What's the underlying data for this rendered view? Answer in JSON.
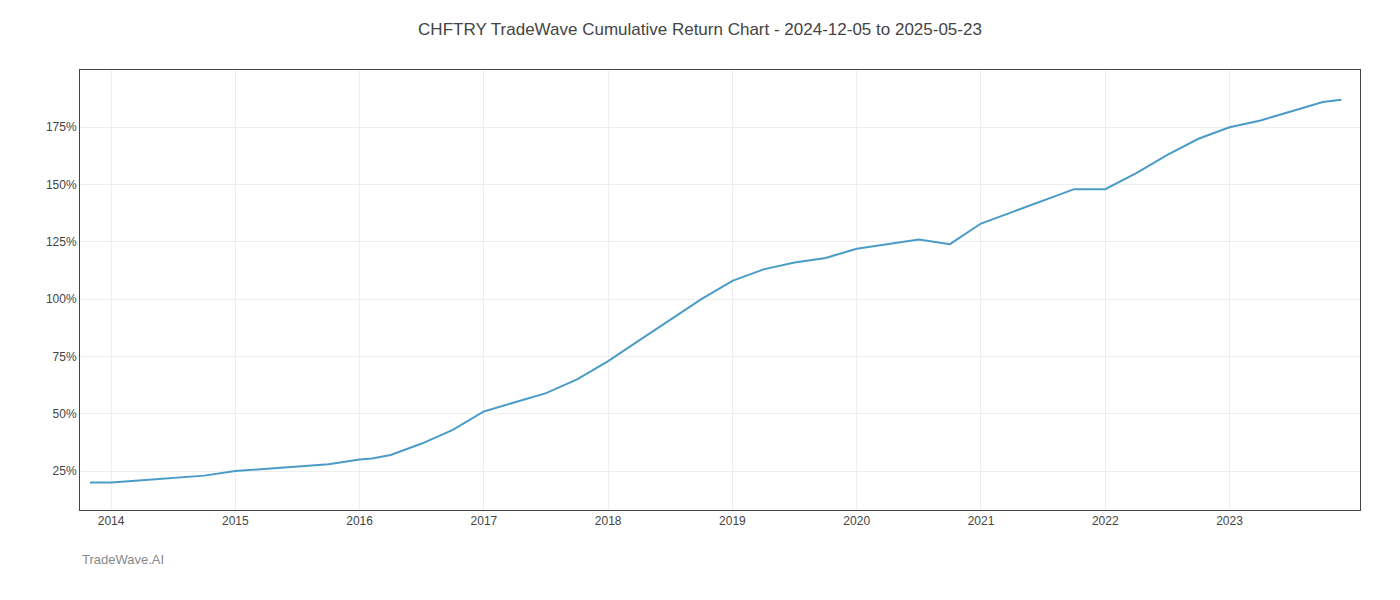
{
  "chart_data": {
    "type": "line",
    "title": "CHFTRY TradeWave Cumulative Return Chart - 2024-12-05 to 2025-05-23",
    "annotations": [
      "TradeWave.AI"
    ],
    "x": [
      2013.83,
      2014.0,
      2014.25,
      2014.5,
      2014.75,
      2015.0,
      2015.25,
      2015.5,
      2015.75,
      2016.0,
      2016.1,
      2016.25,
      2016.5,
      2016.75,
      2017.0,
      2017.25,
      2017.5,
      2017.75,
      2018.0,
      2018.25,
      2018.5,
      2018.75,
      2019.0,
      2019.25,
      2019.5,
      2019.75,
      2020.0,
      2020.25,
      2020.5,
      2020.75,
      2021.0,
      2021.25,
      2021.5,
      2021.75,
      2022.0,
      2022.25,
      2022.5,
      2022.75,
      2023.0,
      2023.25,
      2023.5,
      2023.75,
      2023.9
    ],
    "values": [
      20,
      20,
      21,
      22,
      23,
      25,
      26,
      27,
      28,
      30,
      30.5,
      32,
      37,
      43,
      51,
      55,
      59,
      65,
      73,
      82,
      91,
      100,
      108,
      113,
      116,
      118,
      122,
      124,
      126,
      124,
      133,
      138,
      143,
      148,
      148,
      155,
      163,
      170,
      175,
      178,
      182,
      186,
      187
    ],
    "color": "#4a9cc7",
    "xlim": [
      2013.75,
      2024.05
    ],
    "xticks": [
      2014,
      2015,
      2016,
      2017,
      2018,
      2019,
      2020,
      2021,
      2022,
      2023
    ],
    "ylim": [
      8,
      200
    ],
    "yticks": [
      {
        "value": 25,
        "label": "25%"
      },
      {
        "value": 50,
        "label": "50%"
      },
      {
        "value": 75,
        "label": "75%"
      },
      {
        "value": 100,
        "label": "100%"
      },
      {
        "value": 125,
        "label": "125%"
      },
      {
        "value": 150,
        "label": "150%"
      },
      {
        "value": 175,
        "label": "175%"
      }
    ],
    "grid": true
  }
}
